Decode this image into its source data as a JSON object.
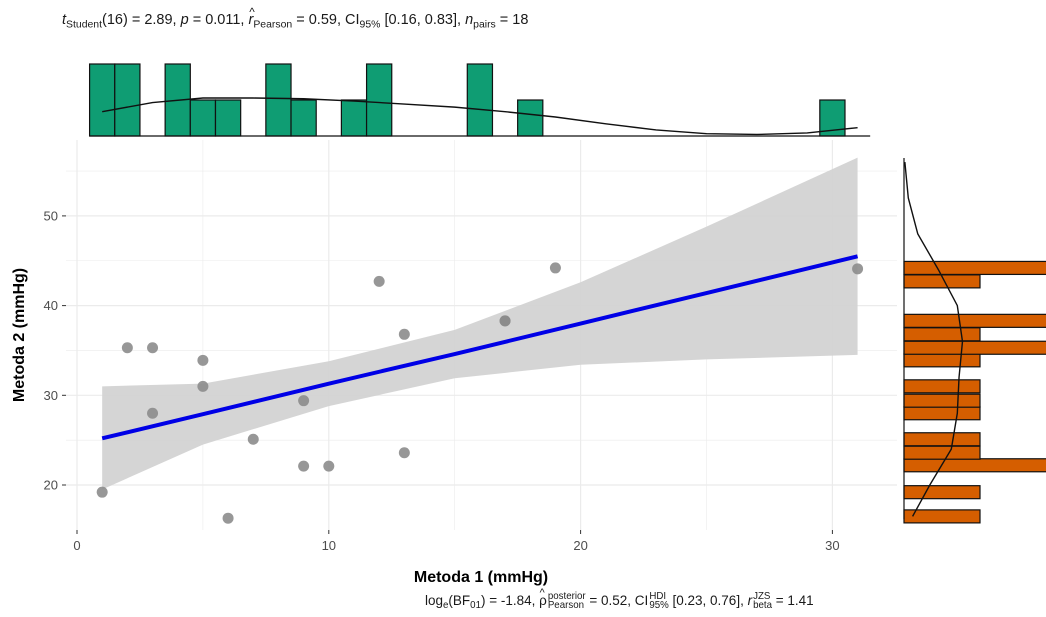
{
  "subtitle": {
    "t_prefix": "t",
    "t_sub": "Student",
    "t_rest": "(16) = 2.89, ",
    "p_sym": "p",
    "p_rest": " = 0.011, ",
    "r_sym": "r",
    "r_sub": "Pearson",
    "r_rest": " = 0.59, CI",
    "ci_sub": "95%",
    "ci_rest": " [0.16, 0.83], ",
    "n_sym": "n",
    "n_sub": "pairs",
    "n_rest": " = 18"
  },
  "caption": {
    "log_text": "log",
    "log_sub": "e",
    "bf_text": "(BF",
    "bf_sub": "01",
    "bf_rest": ") = -1.84, ",
    "rho_sym": "ρ",
    "rho_sup": "posterior",
    "rho_sub": "Pearson",
    "rho_rest": " = 0.52, CI",
    "ci_sup": "HDI",
    "ci_sub": "95%",
    "ci_rest": " [0.23, 0.76], ",
    "r_sym": "r",
    "r_sup": "JZS",
    "r_sub": "beta",
    "r_rest": " = 1.41"
  },
  "colors": {
    "points": "#8c8c8c",
    "regression_line": "#0000e6",
    "confidence_band": "#d3d3d3",
    "top_histogram": "#0f9d73",
    "right_histogram": "#d55e00",
    "grid": "#ebebeb"
  },
  "chart_data": {
    "type": "scatter",
    "xlabel": "Metoda 1 (mmHg)",
    "ylabel": "Metoda 2 (mmHg)",
    "xlim": [
      0,
      32
    ],
    "ylim": [
      15,
      58
    ],
    "xticks": [
      0,
      10,
      20,
      30
    ],
    "yticks": [
      20,
      30,
      40,
      50
    ],
    "grid": true,
    "points": [
      {
        "x": 1,
        "y": 19.2
      },
      {
        "x": 2,
        "y": 35.3
      },
      {
        "x": 3,
        "y": 35.3
      },
      {
        "x": 3,
        "y": 28
      },
      {
        "x": 5,
        "y": 33.9
      },
      {
        "x": 5,
        "y": 31
      },
      {
        "x": 6,
        "y": 16.3
      },
      {
        "x": 7,
        "y": 25.1
      },
      {
        "x": 9,
        "y": 29.4
      },
      {
        "x": 9,
        "y": 22.1
      },
      {
        "x": 10,
        "y": 22.1
      },
      {
        "x": 12,
        "y": 42.7
      },
      {
        "x": 13,
        "y": 36.8
      },
      {
        "x": 13,
        "y": 23.6
      },
      {
        "x": 17,
        "y": 38.3
      },
      {
        "x": 17,
        "y": 38.3
      },
      {
        "x": 19,
        "y": 44.2
      },
      {
        "x": 31,
        "y": 44.1
      }
    ],
    "regression": {
      "x": [
        1,
        5,
        10,
        15,
        20,
        25,
        31
      ],
      "fit": [
        25.2,
        27.9,
        31.3,
        34.6,
        38.0,
        41.4,
        45.5
      ],
      "lower": [
        19.5,
        24.5,
        28.8,
        31.9,
        33.4,
        34.0,
        34.5
      ],
      "upper": [
        31.0,
        31.3,
        33.8,
        37.3,
        42.6,
        48.8,
        56.5
      ]
    },
    "x_histogram": {
      "counts": [
        2,
        2,
        0,
        2,
        1,
        1,
        0,
        2,
        1,
        0,
        1,
        2,
        0,
        0,
        0,
        2,
        0,
        1,
        0,
        0,
        0,
        0,
        0,
        0,
        0,
        0,
        0,
        0,
        0,
        1
      ],
      "density_x": [
        1,
        3,
        5,
        7,
        9,
        11,
        13,
        15,
        17,
        19,
        21,
        23,
        25,
        27,
        29,
        31
      ],
      "density_y": [
        0.032,
        0.044,
        0.05,
        0.05,
        0.049,
        0.046,
        0.042,
        0.038,
        0.032,
        0.025,
        0.016,
        0.008,
        0.003,
        0.002,
        0.004,
        0.011
      ]
    },
    "y_histogram": {
      "bins": [
        {
          "y": 16.5,
          "count": 1
        },
        {
          "y": 19.2,
          "count": 1
        },
        {
          "y": 22.2,
          "count": 2
        },
        {
          "y": 23.6,
          "count": 1
        },
        {
          "y": 25.1,
          "count": 1
        },
        {
          "y": 28.0,
          "count": 1
        },
        {
          "y": 29.4,
          "count": 1
        },
        {
          "y": 31.0,
          "count": 1
        },
        {
          "y": 33.9,
          "count": 1
        },
        {
          "y": 35.3,
          "count": 2
        },
        {
          "y": 36.8,
          "count": 1
        },
        {
          "y": 38.3,
          "count": 2
        },
        {
          "y": 42.7,
          "count": 1
        },
        {
          "y": 44.2,
          "count": 2
        }
      ],
      "density_y": [
        16.5,
        20,
        24,
        28,
        32,
        36,
        40,
        44,
        48,
        52,
        56
      ],
      "density_x": [
        0.01,
        0.03,
        0.055,
        0.062,
        0.064,
        0.068,
        0.062,
        0.04,
        0.016,
        0.005,
        0.001
      ]
    }
  }
}
